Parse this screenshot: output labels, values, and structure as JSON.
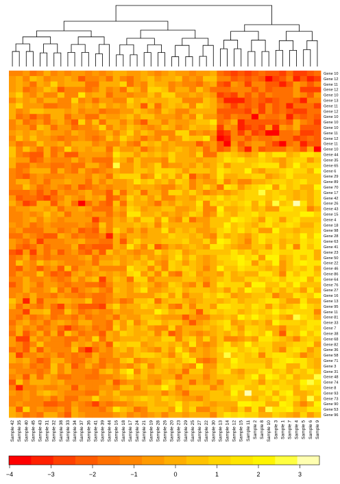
{
  "chart_data": {
    "type": "heatmap",
    "title": "",
    "xlabel": "",
    "ylabel": "",
    "columns": [
      "Sample 42",
      "Sample 35",
      "Sample 40",
      "Sample 45",
      "Sample 43",
      "Sample 31",
      "Sample 32",
      "Sample 38",
      "Sample 33",
      "Sample 34",
      "Sample 37",
      "Sample 36",
      "Sample 41",
      "Sample 39",
      "Sample 44",
      "Sample 16",
      "Sample 18",
      "Sample 17",
      "Sample 24",
      "Sample 21",
      "Sample 19",
      "Sample 28",
      "Sample 26",
      "Sample 20",
      "Sample 23",
      "Sample 29",
      "Sample 25",
      "Sample 27",
      "Sample 22",
      "Sample 30",
      "Sample 13",
      "Sample 14",
      "Sample 12",
      "Sample 15",
      "Sample 11",
      "Sample 2",
      "Sample 8",
      "Sample 10",
      "Sample 3",
      "Sample 1",
      "Sample 7",
      "Sample 4",
      "Sample 5",
      "Sample 6",
      "Sample 9"
    ],
    "rows": [
      "Gene 10",
      "Gene 12",
      "Gene 11",
      "Gene 12",
      "Gene 10",
      "Gene 13",
      "Gene 11",
      "Gene 12",
      "Gene 10",
      "Gene 10",
      "Gene 10",
      "Gene 11",
      "Gene 12",
      "Gene 11",
      "Gene 10",
      "Gene 44",
      "Gene 35",
      "Gene 65",
      "Gene 6",
      "Gene 29",
      "Gene 89",
      "Gene 70",
      "Gene 17",
      "Gene 42",
      "Gene 26",
      "Gene 43",
      "Gene 15",
      "Gene 4",
      "Gene 18",
      "Gene 98",
      "Gene 28",
      "Gene 63",
      "Gene 41",
      "Gene 23",
      "Gene 50",
      "Gene 22",
      "Gene 46",
      "Gene 86",
      "Gene 64",
      "Gene 76",
      "Gene 27",
      "Gene 16",
      "Gene 13",
      "Gene 95",
      "Gene 11",
      "Gene 81",
      "Gene 33",
      "Gene 7",
      "Gene 38",
      "Gene 68",
      "Gene 82",
      "Gene 36",
      "Gene 58",
      "Gene 71",
      "Gene 3",
      "Gene 31",
      "Gene 48",
      "Gene 74",
      "Gene 8",
      "Gene 93",
      "Gene 73",
      "Gene 90",
      "Gene 53",
      "Gene 96"
    ],
    "color_key": {
      "tick_labels": [
        "−4",
        "−3",
        "−2",
        "−1",
        "0",
        "1",
        "2",
        "3"
      ],
      "range": [
        -4,
        3.5
      ],
      "colors": [
        "#ff0000",
        "#ff2000",
        "#ff4000",
        "#ff5a00",
        "#ff7000",
        "#ff8500",
        "#ff9a00",
        "#ffae00",
        "#ffc200",
        "#ffd400",
        "#ffe500",
        "#fff400",
        "#ffff40",
        "#ffffb0"
      ]
    },
    "dendrogram": "column clustering tree (hierarchical)",
    "values": [
      [
        -1.2,
        -0.8,
        -0.3,
        -1.5,
        -0.9,
        -0.2,
        -1.1,
        -0.5,
        -0.9,
        -0.7,
        -0.4,
        -1.3,
        -0.6,
        -0.8,
        -0.3,
        0.1,
        -0.2,
        -0.6,
        -0.3,
        -0.1,
        -0.5,
        -0.8,
        -0.4,
        -0.2,
        -0.6,
        -0.3,
        -0.9,
        -0.4,
        -0.5,
        -0.2,
        -1.8,
        -2.2,
        -2.5,
        -1.9,
        -2.8,
        -2.1,
        -1.6,
        -2.3,
        -2.0,
        -2.6,
        -1.7,
        -2.9,
        -2.4,
        -2.2,
        -1.5
      ]
    ]
  }
}
